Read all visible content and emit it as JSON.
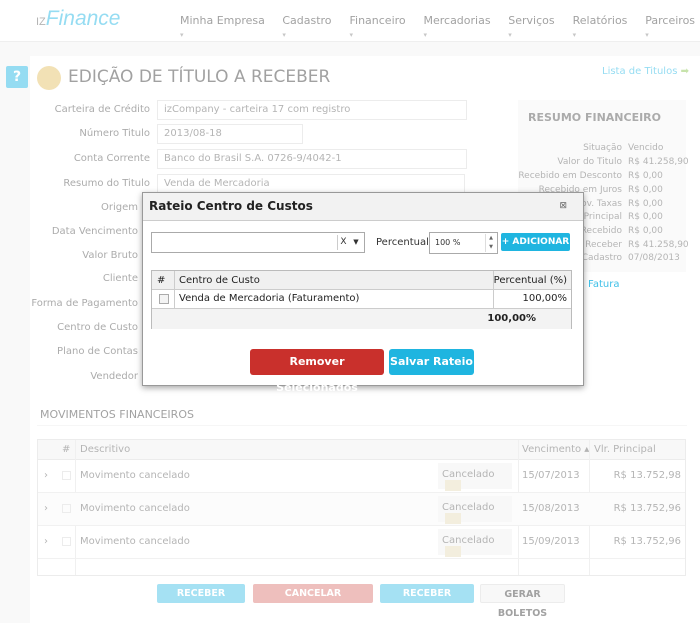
{
  "nav": {
    "logo_prefix": "IZ",
    "logo": "Finance",
    "menu": [
      "Minha Empresa",
      "Cadastro",
      "Financeiro",
      "Mercadorias",
      "Serviços",
      "Relatórios",
      "Parceiros"
    ]
  },
  "page": {
    "title": "EDIÇÃO DE TÍTULO A RECEBER",
    "lista_link": "Lista de Titulos",
    "help": "?"
  },
  "form": {
    "labels": [
      "Carteira de Crédito",
      "Número Titulo",
      "Conta Corrente",
      "Resumo do Titulo",
      "Origem",
      "Data Vencimento",
      "Valor Bruto",
      "Cliente",
      "Forma de Pagamento",
      "Centro de Custo",
      "Plano de Contas",
      "Vendedor"
    ],
    "carteira": "izCompany - carteira 17 com registro",
    "numero": "2013/08-18",
    "conta": "Banco do Brasil S.A. 0726-9/4042-1",
    "resumo": "Venda de Mercadoria"
  },
  "resumo": {
    "title": "RESUMO FINANCEIRO",
    "rows": [
      {
        "k": "Situação",
        "v": "Vencido"
      },
      {
        "k": "Valor do Titulo",
        "v": "R$ 41.258,90"
      },
      {
        "k": "Recebido em Desconto",
        "v": "R$ 0,00"
      },
      {
        "k": "Recebido em Juros",
        "v": "R$ 0,00"
      },
      {
        "k": "Mov. Taxas",
        "v": "R$ 0,00"
      },
      {
        "k": "Principal",
        "v": "R$ 0,00"
      },
      {
        "k": "Recebido",
        "v": "R$ 0,00"
      },
      {
        "k": "a Receber",
        "v": "R$ 41.258,90"
      },
      {
        "k": "Cadastro",
        "v": "07/08/2013"
      }
    ],
    "fatura_link": "Fatura"
  },
  "movimentos": {
    "title": "MOVIMENTOS FINANCEIROS",
    "headers": [
      "#",
      "Descritivo",
      "Vencimento",
      "Vlr. Principal"
    ],
    "rows": [
      {
        "desc": "Movimento cancelado",
        "status": "Cancelado",
        "venc": "15/07/2013",
        "valor": "R$ 13.752,98"
      },
      {
        "desc": "Movimento cancelado",
        "status": "Cancelado",
        "venc": "15/08/2013",
        "valor": "R$ 13.752,96"
      },
      {
        "desc": "Movimento cancelado",
        "status": "Cancelado",
        "venc": "15/09/2013",
        "valor": "R$ 13.752,96"
      }
    ],
    "buttons": [
      "RECEBER AVULSO",
      "CANCELAR MOVIMENTO",
      "RECEBER PARCELA",
      "GERAR BOLETOS"
    ]
  },
  "modal": {
    "title": "Rateio Centro de Custos",
    "clear": "X",
    "percentual_label": "Percentual",
    "percentual_value": "100 %",
    "add": "+ ADICIONAR",
    "headers": [
      "#",
      "Centro de Custo",
      "Percentual (%)"
    ],
    "rows": [
      {
        "centro": "Venda de Mercadoria (Faturamento)",
        "pct": "100,00%"
      }
    ],
    "total": "100,00%",
    "remove": "Remover Selecionados",
    "save": "Salvar Rateio"
  },
  "colors": {
    "accent": "#1fb5e0",
    "danger": "#c9302c"
  }
}
